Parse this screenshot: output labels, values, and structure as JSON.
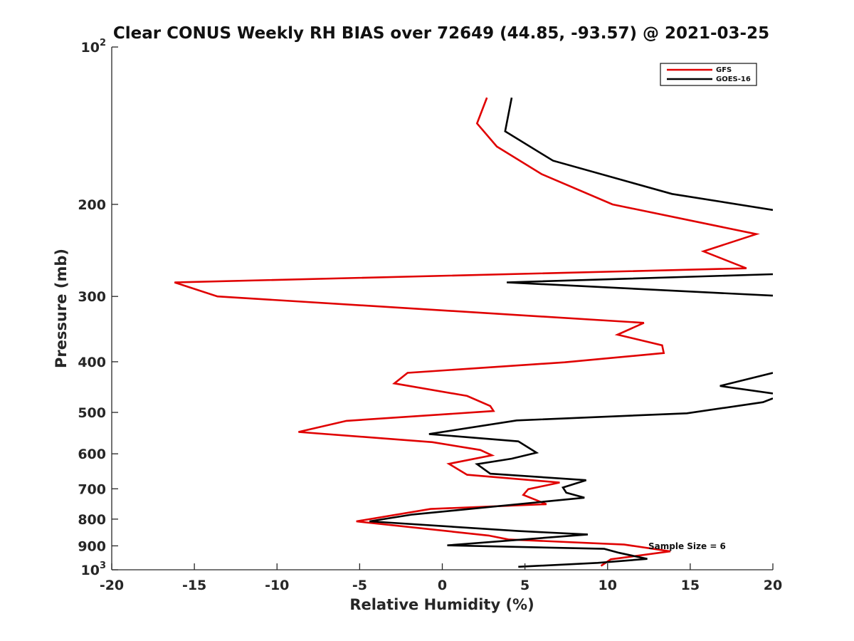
{
  "chart_data": {
    "type": "line",
    "title": "Clear CONUS Weekly RH BIAS over 72649 (44.85, -93.57) @ 2021-03-25",
    "xlabel": "Relative Humidity (%)",
    "ylabel": "Pressure (mb)",
    "xlim": [
      -20,
      20
    ],
    "ylim": [
      1000,
      100
    ],
    "y_scale": "log",
    "y_reversed": true,
    "grid": false,
    "legend_position": "top-right",
    "x_ticks": [
      "-20",
      "-15",
      "-10",
      "-5",
      "0",
      "5",
      "10",
      "15",
      "20"
    ],
    "y_ticks": [
      {
        "value": 100,
        "base": "10",
        "exp": "2"
      },
      {
        "value": 200,
        "base": "200",
        "exp": ""
      },
      {
        "value": 300,
        "base": "300",
        "exp": ""
      },
      {
        "value": 400,
        "base": "400",
        "exp": ""
      },
      {
        "value": 500,
        "base": "500",
        "exp": ""
      },
      {
        "value": 600,
        "base": "600",
        "exp": ""
      },
      {
        "value": 700,
        "base": "700",
        "exp": ""
      },
      {
        "value": 800,
        "base": "800",
        "exp": ""
      },
      {
        "value": 900,
        "base": "900",
        "exp": ""
      },
      {
        "value": 1000,
        "base": "10",
        "exp": "3"
      }
    ],
    "annotation": "Sample Size = 6",
    "series": [
      {
        "name": "GFS",
        "color": "#e00000",
        "points": [
          [
            2.7,
            125
          ],
          [
            2.1,
            140
          ],
          [
            3.3,
            155
          ],
          [
            6.0,
            175
          ],
          [
            10.3,
            200
          ],
          [
            19.0,
            228
          ],
          [
            15.8,
            246
          ],
          [
            18.4,
            265
          ],
          [
            -16.2,
            282
          ],
          [
            -13.6,
            300
          ],
          [
            12.2,
            337
          ],
          [
            10.6,
            355
          ],
          [
            13.3,
            372
          ],
          [
            13.4,
            385
          ],
          [
            7.4,
            401
          ],
          [
            -2.1,
            420
          ],
          [
            -2.9,
            440
          ],
          [
            1.5,
            465
          ],
          [
            2.9,
            486
          ],
          [
            3.1,
            497
          ],
          [
            -5.8,
            519
          ],
          [
            -8.7,
            545
          ],
          [
            -0.6,
            570
          ],
          [
            2.3,
            590
          ],
          [
            3.0,
            604
          ],
          [
            0.4,
            627
          ],
          [
            1.5,
            658
          ],
          [
            7.1,
            681
          ],
          [
            5.2,
            701
          ],
          [
            4.9,
            719
          ],
          [
            6.3,
            749
          ],
          [
            -0.7,
            765
          ],
          [
            -5.2,
            808
          ],
          [
            2.8,
            860
          ],
          [
            4.0,
            875
          ],
          [
            11.0,
            895
          ],
          [
            13.8,
            922
          ],
          [
            10.2,
            955
          ],
          [
            9.6,
            983
          ]
        ]
      },
      {
        "name": "GOES-16",
        "color": "#000000",
        "points": [
          [
            4.2,
            125
          ],
          [
            3.8,
            145
          ],
          [
            6.7,
            165
          ],
          [
            13.9,
            191
          ],
          [
            20.0,
            205
          ],
          [
            null,
            null
          ],
          [
            20.0,
            272
          ],
          [
            3.9,
            282
          ],
          [
            20.0,
            299
          ],
          [
            null,
            null
          ],
          [
            20.0,
            420
          ],
          [
            16.8,
            445
          ],
          [
            20.0,
            460
          ],
          [
            null,
            null
          ],
          [
            20.0,
            470
          ],
          [
            19.4,
            478
          ],
          [
            14.8,
            502
          ],
          [
            4.5,
            518
          ],
          [
            -0.8,
            550
          ],
          [
            4.6,
            568
          ],
          [
            5.7,
            597
          ],
          [
            4.2,
            613
          ],
          [
            2.1,
            628
          ],
          [
            2.9,
            655
          ],
          [
            8.7,
            674
          ],
          [
            7.3,
            696
          ],
          [
            7.5,
            712
          ],
          [
            8.6,
            728
          ],
          [
            0.9,
            769
          ],
          [
            -1.8,
            784
          ],
          [
            -4.4,
            808
          ],
          [
            4.6,
            843
          ],
          [
            8.8,
            856
          ],
          [
            0.3,
            898
          ],
          [
            9.8,
            912
          ],
          [
            10.7,
            928
          ],
          [
            12.4,
            953
          ],
          [
            9.4,
            970
          ],
          [
            4.6,
            987
          ]
        ]
      }
    ]
  }
}
